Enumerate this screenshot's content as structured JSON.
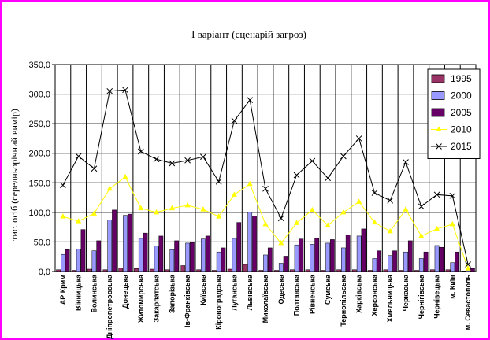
{
  "chart_data": {
    "type": "bar",
    "title": "І варіант  (сценарій загроз)",
    "ylabel": "тис. осіб (середньорічний вимір)",
    "xlabel": "",
    "ylim": [
      0,
      350
    ],
    "yticks": [
      "0,0",
      "50,0",
      "100,0",
      "150,0",
      "200,0",
      "250,0",
      "300,0",
      "350,0"
    ],
    "grid": true,
    "legend_position": "right",
    "categories": [
      "АР Крим",
      "Вінницька",
      "Волинська",
      "Дніпропетровська",
      "Донецька",
      "Житомирська",
      "Закарпатська",
      "Запорізька",
      "Ів-Франківська",
      "Київська",
      "Кіровоградська",
      "Луганська",
      "Львівська",
      "Миколаївська",
      "Одеська",
      "Полтавська",
      "Рівненська",
      "Сумська",
      "Тернопільська",
      "Харківська",
      "Херсонська",
      "Хмельницька",
      "Черкаська",
      "Чернігівська",
      "Чернівецька",
      "м. Київ",
      "м. Севастополь"
    ],
    "series": [
      {
        "name": "1995",
        "type": "bar",
        "color": "#993366",
        "values": [
          3,
          2,
          4,
          3,
          6,
          5,
          4,
          3,
          10,
          3,
          2,
          4,
          12,
          2,
          2,
          3,
          3,
          2,
          3,
          3,
          2,
          3,
          2,
          2,
          3,
          3,
          1
        ]
      },
      {
        "name": "2000",
        "type": "bar",
        "color": "#9999ff",
        "values": [
          29,
          38,
          35,
          87,
          95,
          56,
          43,
          37,
          48,
          55,
          33,
          56,
          100,
          28,
          14,
          45,
          46,
          48,
          40,
          60,
          22,
          27,
          33,
          22,
          44,
          15,
          3
        ]
      },
      {
        "name": "2005",
        "type": "bar",
        "color": "#660066",
        "values": [
          37,
          71,
          52,
          104,
          97,
          65,
          60,
          52,
          49,
          60,
          40,
          83,
          94,
          40,
          26,
          55,
          56,
          54,
          62,
          72,
          35,
          35,
          52,
          33,
          41,
          33,
          5
        ]
      },
      {
        "name": "2010",
        "type": "line",
        "color": "#ffff00",
        "marker": "triangle",
        "values": [
          93,
          85,
          98,
          140,
          160,
          107,
          100,
          107,
          112,
          105,
          93,
          130,
          148,
          80,
          48,
          82,
          104,
          78,
          100,
          118,
          83,
          68,
          105,
          60,
          72,
          80,
          5
        ]
      },
      {
        "name": "2015",
        "type": "line",
        "color": "#000000",
        "marker": "x",
        "values": [
          146,
          195,
          174,
          305,
          307,
          203,
          190,
          183,
          188,
          194,
          152,
          255,
          290,
          140,
          90,
          163,
          187,
          158,
          195,
          225,
          133,
          120,
          185,
          110,
          130,
          128,
          12
        ]
      }
    ]
  }
}
